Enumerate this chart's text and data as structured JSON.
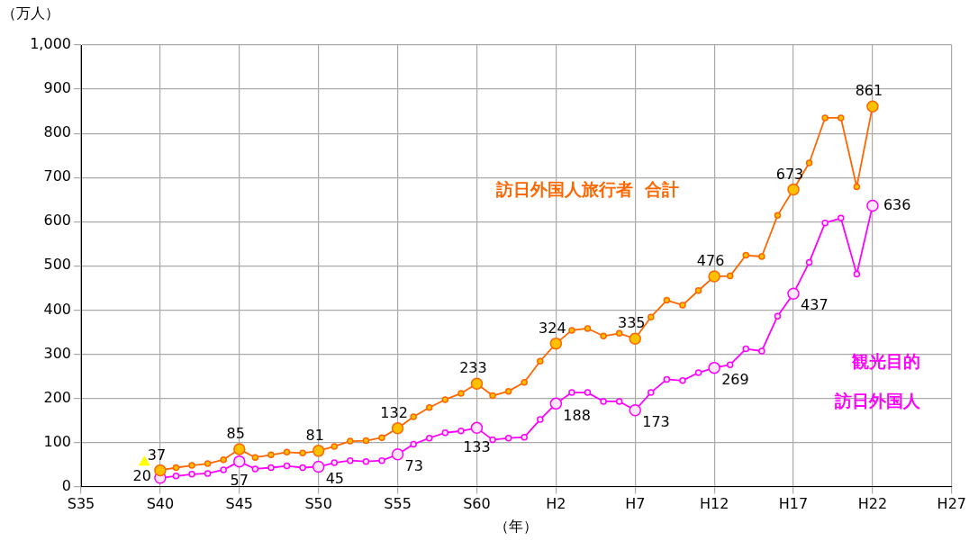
{
  "chart_data": {
    "type": "line",
    "xlabel": "（年）",
    "ylabel": "（万人）",
    "categories": [
      "S35",
      null,
      null,
      null,
      null,
      "S40",
      null,
      null,
      null,
      null,
      "S45",
      null,
      null,
      null,
      null,
      "S50",
      null,
      null,
      null,
      null,
      "S55",
      null,
      null,
      null,
      null,
      "S60",
      null,
      null,
      null,
      null,
      "H2",
      null,
      null,
      null,
      null,
      "H7",
      null,
      null,
      null,
      null,
      "H12",
      null,
      null,
      null,
      null,
      "H17",
      null,
      null,
      null,
      null,
      "H22",
      null,
      null,
      null,
      null,
      "H27"
    ],
    "series": [
      {
        "name": "訪日外国人旅行者  合計",
        "color": "#ff6600",
        "values": [
          null,
          null,
          null,
          null,
          null,
          37,
          43,
          48,
          52,
          61,
          85,
          66,
          72,
          78,
          76,
          81,
          91,
          103,
          104,
          111,
          132,
          158,
          179,
          197,
          211,
          233,
          206,
          216,
          236,
          284,
          324,
          354,
          358,
          341,
          347,
          335,
          384,
          422,
          411,
          444,
          476,
          477,
          524,
          521,
          614,
          673,
          733,
          835,
          835,
          679,
          861,
          null,
          null,
          null,
          null,
          null
        ],
        "value_labels": [
          null,
          null,
          null,
          null,
          null,
          "37",
          null,
          null,
          null,
          null,
          "85",
          null,
          null,
          null,
          null,
          "81",
          null,
          null,
          null,
          null,
          "132",
          null,
          null,
          null,
          null,
          "233",
          null,
          null,
          null,
          null,
          "324",
          null,
          null,
          null,
          null,
          "335",
          null,
          null,
          null,
          null,
          "476",
          null,
          null,
          null,
          null,
          "673",
          null,
          null,
          null,
          null,
          "861",
          null,
          null,
          null,
          null,
          null
        ]
      },
      {
        "name": "観光目的訪日外国人",
        "color": "#ff00ff",
        "values": [
          null,
          null,
          null,
          null,
          null,
          20,
          24,
          28,
          30,
          38,
          57,
          40,
          43,
          47,
          43,
          45,
          54,
          59,
          57,
          59,
          73,
          96,
          110,
          122,
          126,
          133,
          106,
          110,
          112,
          152,
          188,
          213,
          213,
          193,
          193,
          173,
          213,
          243,
          240,
          258,
          269,
          276,
          312,
          307,
          386,
          437,
          508,
          597,
          608,
          481,
          636,
          null,
          null,
          null,
          null,
          null
        ],
        "value_labels": [
          null,
          null,
          null,
          null,
          null,
          "20",
          null,
          null,
          null,
          null,
          "57",
          null,
          null,
          null,
          null,
          "45",
          null,
          null,
          null,
          null,
          "73",
          null,
          null,
          null,
          null,
          "133",
          null,
          null,
          null,
          null,
          "188",
          null,
          null,
          null,
          null,
          "173",
          null,
          null,
          null,
          null,
          "269",
          null,
          null,
          null,
          null,
          "437",
          null,
          null,
          null,
          null,
          "636",
          null,
          null,
          null,
          null,
          null
        ]
      },
      {
        "type": "scatter",
        "color": "#ffff00",
        "values": [
          null,
          null,
          null,
          null,
          55,
          null,
          null,
          null,
          null,
          null,
          null,
          null,
          null,
          null,
          null,
          null,
          null,
          null,
          null,
          null,
          null,
          null,
          null,
          null,
          null,
          null,
          null,
          null,
          null,
          null,
          null,
          null,
          null,
          null,
          null,
          null,
          null,
          null,
          null,
          null,
          null,
          null,
          null,
          null,
          null,
          null,
          null,
          null,
          null,
          null,
          null,
          null,
          null,
          null,
          null,
          null
        ],
        "marker": "triangle"
      }
    ],
    "ylim": [
      0,
      1000
    ],
    "yticks": [
      0,
      100,
      200,
      300,
      400,
      500,
      600,
      700,
      800,
      900,
      {
        "value": 1000,
        "label": "1,000"
      }
    ],
    "grid": true,
    "legend": false,
    "marker": "circle",
    "line_style": "solid"
  }
}
